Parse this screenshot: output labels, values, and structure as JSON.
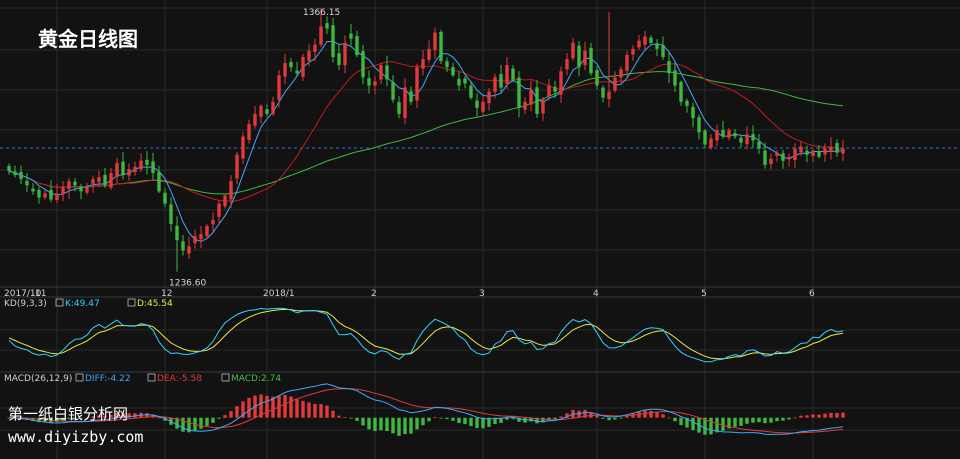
{
  "chart_data": {
    "type": "candlestick",
    "title": "黄金日线图",
    "date_labels": [
      "2017/10",
      "11",
      "12",
      "2018/1",
      "2",
      "3",
      "4",
      "5",
      "6"
    ],
    "price_annotations": {
      "high": {
        "value": "1366.15",
        "index": 52
      },
      "low": {
        "value": "1236.60",
        "index": 28
      }
    },
    "kd_panel": {
      "header": "KD(9,3,3)",
      "k_label": "K:49.47",
      "d_label": "D:45.54",
      "k_color": "#33d2ff",
      "d_color": "#e8e84a"
    },
    "macd_panel": {
      "header": "MACD(26,12,9)",
      "diff_label": "DIFF:-4.22",
      "dea_label": "DEA:-5.58",
      "macd_label": "MACD:2.74",
      "diff_color": "#3fa8ff",
      "dea_color": "#e23a3a",
      "macd_color": "#43c043"
    },
    "colors": {
      "up": "#e23a3a",
      "down": "#3fb83f",
      "ma_short": "#3fa8ff",
      "ma_mid": "#c01d1d",
      "ma_long": "#3fb83f",
      "ref_line": "#2d6fd8",
      "grid": "#2a2a2a"
    },
    "series": {
      "close": [
        1286,
        1284,
        1282,
        1279,
        1276,
        1273,
        1275,
        1272,
        1275,
        1278,
        1281,
        1279,
        1276,
        1278,
        1282,
        1283,
        1279,
        1285,
        1290,
        1284,
        1287,
        1288,
        1291,
        1289,
        1285,
        1276,
        1270,
        1260,
        1252,
        1247,
        1249,
        1254,
        1255,
        1259,
        1262,
        1270,
        1274,
        1281,
        1294,
        1303,
        1309,
        1314,
        1318,
        1314,
        1320,
        1333,
        1339,
        1337,
        1334,
        1342,
        1345,
        1348,
        1357,
        1356,
        1342,
        1338,
        1349,
        1351,
        1343,
        1332,
        1328,
        1330,
        1338,
        1331,
        1321,
        1314,
        1327,
        1320,
        1337,
        1341,
        1346,
        1354,
        1340,
        1337,
        1333,
        1328,
        1329,
        1322,
        1317,
        1320,
        1325,
        1332,
        1327,
        1338,
        1331,
        1317,
        1320,
        1326,
        1314,
        1321,
        1328,
        1325,
        1335,
        1341,
        1349,
        1337,
        1345,
        1334,
        1328,
        1322,
        1325,
        1332,
        1336,
        1343,
        1346,
        1350,
        1352,
        1349,
        1346,
        1342,
        1334,
        1328,
        1320,
        1318,
        1312,
        1305,
        1299,
        1302,
        1306,
        1303,
        1306,
        1303,
        1300,
        1304,
        1301,
        1297,
        1289,
        1292,
        1295,
        1291,
        1293,
        1297,
        1298,
        1294,
        1296,
        1293,
        1297,
        1298,
        1295,
        1297
      ]
    },
    "axes": {
      "price_range": [
        1230,
        1370
      ],
      "kd_range": [
        0,
        100
      ],
      "macd_range": [
        -20,
        22
      ]
    },
    "watermark": {
      "line1": "第一纸白银分析网",
      "line2": "www.diyizby.com"
    }
  }
}
